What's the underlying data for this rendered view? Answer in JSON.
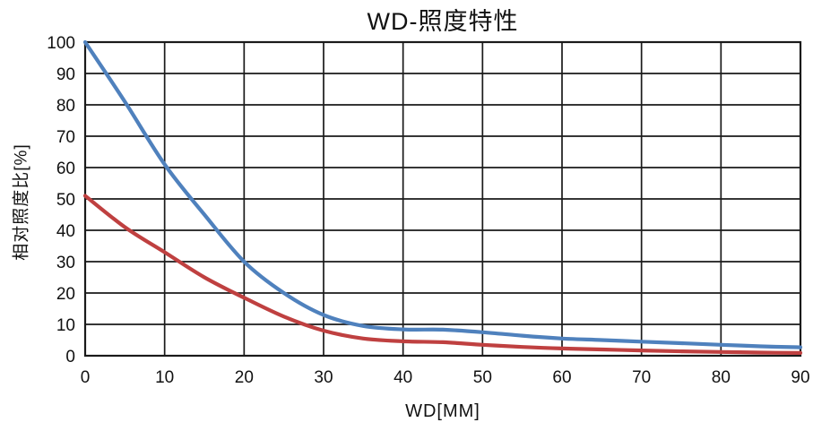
{
  "chart": {
    "title": "WD-照度特性",
    "xlabel": "WD[MM]",
    "ylabel": "相对照度比[%]"
  },
  "chart_data": {
    "type": "line",
    "title": "WD-照度特性",
    "xlabel": "WD[MM]",
    "ylabel": "相对照度比[%]",
    "xlim": [
      0,
      90
    ],
    "ylim": [
      0,
      100
    ],
    "x_ticks": [
      0,
      10,
      20,
      30,
      40,
      50,
      60,
      70,
      80,
      90
    ],
    "y_ticks": [
      0,
      10,
      20,
      30,
      40,
      50,
      60,
      70,
      80,
      90,
      100
    ],
    "grid": true,
    "grid_color": "#1a1a1a",
    "axis_color": "#1a1a1a",
    "legend": "none",
    "series": [
      {
        "name": "blue",
        "color": "#4f81bd",
        "x": [
          0,
          5,
          10,
          15,
          20,
          25,
          30,
          35,
          40,
          45,
          50,
          55,
          60,
          65,
          70,
          75,
          80,
          85,
          90
        ],
        "y": [
          100,
          81,
          61,
          45,
          30,
          20,
          13,
          9.5,
          8.4,
          8.3,
          7.5,
          6.4,
          5.5,
          5,
          4.5,
          4,
          3.5,
          3,
          2.7
        ]
      },
      {
        "name": "red",
        "color": "#bf4040",
        "x": [
          0,
          5,
          10,
          15,
          20,
          25,
          30,
          35,
          40,
          45,
          50,
          55,
          60,
          65,
          70,
          75,
          80,
          85,
          90
        ],
        "y": [
          51,
          41,
          33,
          25,
          18.5,
          12.5,
          8,
          5.5,
          4.6,
          4.3,
          3.5,
          2.8,
          2.3,
          2,
          1.7,
          1.4,
          1.2,
          1,
          0.9
        ]
      }
    ]
  }
}
